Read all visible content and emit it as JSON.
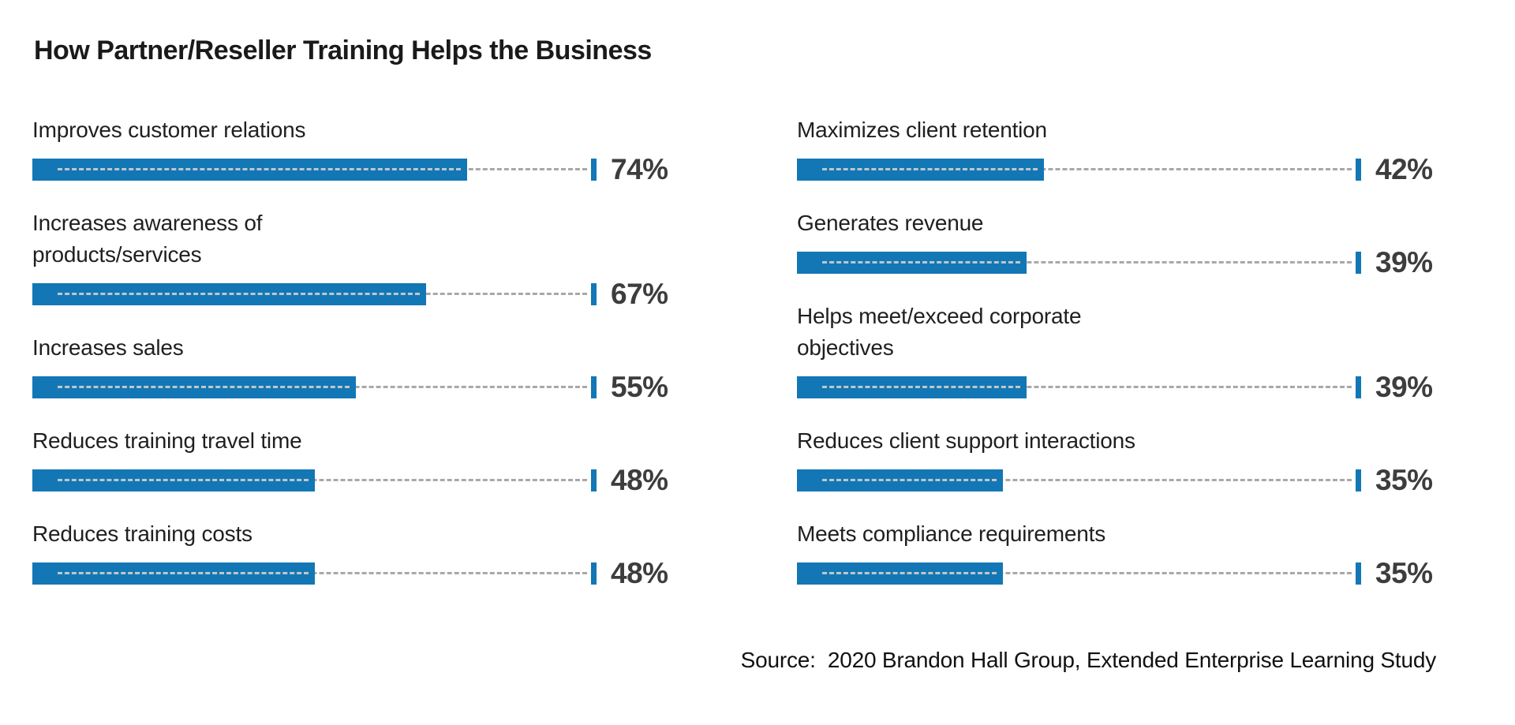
{
  "colors": {
    "bar": "#1377b5",
    "tick": "#1377b5",
    "bar_dash": "#bfc7cc",
    "leader_dash": "#a8a8a8",
    "title_text": "#1a1a1a",
    "label_text": "#1f1f1f",
    "value_text": "#3d3d3d",
    "source_text": "#111111"
  },
  "chart_data": {
    "type": "bar",
    "orientation": "horizontal",
    "title": "How Partner/Reseller Training Helps the Business",
    "unit": "%",
    "xlim": [
      0,
      100
    ],
    "grid": false,
    "legend": false,
    "value_label_position": "right-of-axis-tick",
    "columns": [
      {
        "categories": [
          "Improves customer relations",
          "Increases awareness of\nproducts/services",
          "Increases sales",
          "Reduces training travel time",
          "Reduces training costs"
        ],
        "values": [
          74,
          67,
          55,
          48,
          48
        ]
      },
      {
        "categories": [
          "Maximizes client retention",
          "Generates revenue",
          "Helps meet/exceed corporate\nobjectives",
          "Reduces client support interactions",
          "Meets compliance requirements"
        ],
        "values": [
          42,
          39,
          39,
          35,
          35
        ]
      }
    ],
    "source": "Source:  2020 Brandon Hall Group, Extended Enterprise Learning Study"
  }
}
